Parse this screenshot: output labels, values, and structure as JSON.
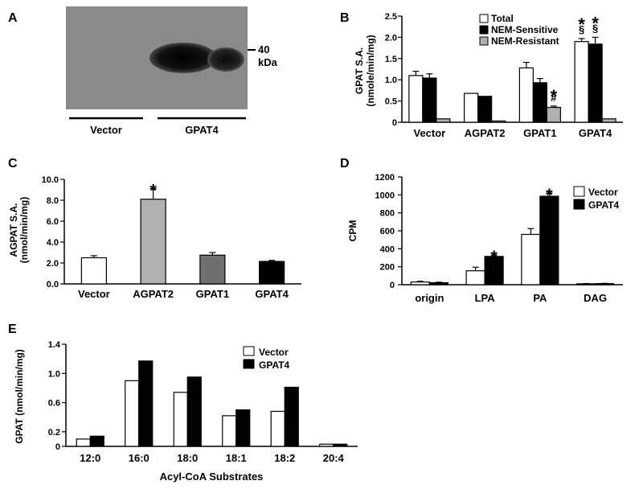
{
  "blot": {
    "letter": "A",
    "marker_value": "40",
    "marker_unit": "kDa",
    "lanes": [
      "Vector",
      "GPAT4"
    ]
  },
  "chart_data": [
    {
      "id": "B",
      "letter": "B",
      "type": "bar",
      "ylabel": "GPAT S.A.",
      "ylabel2": "(nmole/min/mg)",
      "ylim": [
        0,
        2.5
      ],
      "yticks": [
        0,
        0.5,
        1.0,
        1.5,
        2.0,
        2.5
      ],
      "ytick_labels": [
        "0",
        "0.5",
        "1.0",
        "1.5",
        "2.0",
        "2.5"
      ],
      "categories": [
        "Vector",
        "AGPAT2",
        "GPAT1",
        "GPAT4"
      ],
      "series": [
        {
          "name": "Total",
          "color": "#ffffff",
          "values": [
            1.1,
            0.68,
            1.28,
            1.9
          ],
          "errors": [
            0.1,
            0,
            0.13,
            0.07
          ]
        },
        {
          "name": "NEM-Sensitive",
          "color": "#000000",
          "values": [
            1.04,
            0.61,
            0.93,
            1.84
          ],
          "errors": [
            0.1,
            0,
            0.1,
            0.16
          ]
        },
        {
          "name": "NEM-Resistant",
          "color": "#b0b0b0",
          "values": [
            0.08,
            0.03,
            0.35,
            0.08
          ],
          "errors": [
            0,
            0,
            0.03,
            0
          ]
        }
      ],
      "annotations": [
        {
          "text": "*",
          "category": 2,
          "series": 2
        },
        {
          "text": "#",
          "category": 2,
          "series": 2
        },
        {
          "text": "*",
          "category": 3,
          "series": 0
        },
        {
          "text": "*",
          "category": 3,
          "series": 1
        },
        {
          "text": "§",
          "category": 3,
          "series": 0
        },
        {
          "text": "§",
          "category": 3,
          "series": 1
        }
      ],
      "legend": "top-right"
    },
    {
      "id": "C",
      "letter": "C",
      "type": "bar",
      "ylabel": "AGPAT S.A.",
      "ylabel2": "(nmol/min/mg)",
      "ylim": [
        0,
        10
      ],
      "yticks": [
        0,
        2,
        4,
        6,
        8,
        10
      ],
      "ytick_labels": [
        "0.0",
        "2.0",
        "4.0",
        "6.0",
        "8.0",
        "10.0"
      ],
      "categories": [
        "Vector",
        "AGPAT2",
        "GPAT1",
        "GPAT4"
      ],
      "series": [
        {
          "name": "",
          "colors": [
            "#ffffff",
            "#b0b0b0",
            "#707070",
            "#000000"
          ],
          "values": [
            2.5,
            8.1,
            2.75,
            2.15
          ],
          "errors": [
            0.2,
            1.0,
            0.25,
            0.1
          ]
        }
      ],
      "annotations": [
        {
          "text": "*",
          "category": 1,
          "series": 0
        }
      ]
    },
    {
      "id": "D",
      "letter": "D",
      "type": "bar",
      "ylabel": "CPM",
      "ylabel2": "",
      "ylim": [
        0,
        1200
      ],
      "yticks": [
        0,
        200,
        400,
        600,
        800,
        1000,
        1200
      ],
      "ytick_labels": [
        "0",
        "200",
        "400",
        "600",
        "800",
        "1000",
        "1200"
      ],
      "categories": [
        "origin",
        "LPA",
        "PA",
        "DAG"
      ],
      "series": [
        {
          "name": "Vector",
          "color": "#ffffff",
          "values": [
            30,
            155,
            560,
            10
          ],
          "errors": [
            8,
            40,
            65,
            3
          ]
        },
        {
          "name": "GPAT4",
          "color": "#000000",
          "values": [
            22,
            315,
            985,
            12
          ],
          "errors": [
            6,
            15,
            35,
            3
          ]
        }
      ],
      "annotations": [
        {
          "text": "*",
          "category": 1,
          "series": 1
        },
        {
          "text": "*",
          "category": 2,
          "series": 1
        }
      ],
      "legend": "top-right"
    },
    {
      "id": "E",
      "letter": "E",
      "type": "bar",
      "ylabel": "GPAT (nmol/min/mg)",
      "ylabel2": "",
      "xlabel": "Acyl-CoA Substrates",
      "ylim": [
        0,
        1.4
      ],
      "yticks": [
        0,
        0.2,
        0.6,
        1.0,
        1.4
      ],
      "ytick_labels": [
        "0",
        "0.2",
        "0.6",
        "1.0",
        "1.4"
      ],
      "categories": [
        "12:0",
        "16:0",
        "18:0",
        "18:1",
        "18:2",
        "20:4"
      ],
      "series": [
        {
          "name": "Vector",
          "color": "#ffffff",
          "values": [
            0.1,
            0.9,
            0.74,
            0.42,
            0.48,
            0.03
          ]
        },
        {
          "name": "GPAT4",
          "color": "#000000",
          "values": [
            0.14,
            1.17,
            0.95,
            0.5,
            0.81,
            0.03
          ]
        }
      ],
      "legend": "top-center"
    }
  ]
}
